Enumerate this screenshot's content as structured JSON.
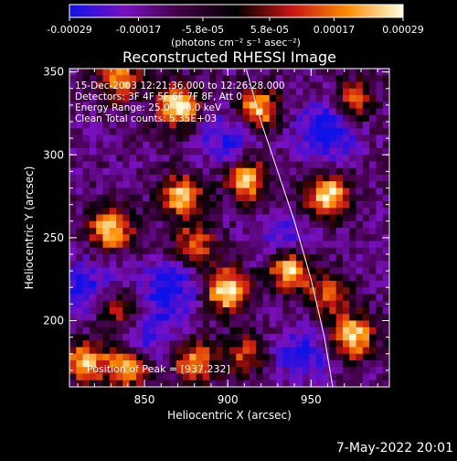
{
  "colorbar": {
    "tick_labels": [
      "-0.00029",
      "-0.00017",
      "-5.8e-05",
      "5.8e-05",
      "0.00017",
      "0.00029"
    ],
    "tick_values": [
      -0.00029,
      -0.00017,
      -5.8e-05,
      5.8e-05,
      0.00017,
      0.00029
    ],
    "range": [
      -0.00029,
      0.00029
    ],
    "units_label": "(photons cm⁻² s⁻¹ asec⁻²)",
    "colors": [
      "#1010e8",
      "#7a10c0",
      "#400040",
      "#000000",
      "#c81414",
      "#ff8c00",
      "#ffffe0"
    ]
  },
  "chart_data": {
    "type": "heatmap",
    "title": "Reconstructed RHESSI Image",
    "xlabel": "Heliocentric X (arcsec)",
    "ylabel": "Heliocentric Y (arcsec)",
    "xlim": [
      805,
      997
    ],
    "ylim": [
      160,
      352
    ],
    "x_ticks": [
      850,
      900,
      950
    ],
    "y_ticks": [
      200,
      250,
      300,
      350
    ],
    "x_tick_labels": [
      "850",
      "900",
      "950"
    ],
    "y_tick_labels": [
      "200",
      "250",
      "300",
      "350"
    ],
    "colormap": "blue-purple-black-red-orange-yellow-white",
    "bright_sources": [
      {
        "x": 830,
        "y": 255,
        "level": 0.8
      },
      {
        "x": 870,
        "y": 330,
        "level": 0.9
      },
      {
        "x": 872,
        "y": 275,
        "level": 0.75
      },
      {
        "x": 880,
        "y": 245,
        "level": 0.6
      },
      {
        "x": 900,
        "y": 218,
        "level": 0.95
      },
      {
        "x": 912,
        "y": 285,
        "level": 0.75
      },
      {
        "x": 918,
        "y": 328,
        "level": 0.8
      },
      {
        "x": 937,
        "y": 232,
        "level": 1.0
      },
      {
        "x": 960,
        "y": 275,
        "level": 0.9
      },
      {
        "x": 975,
        "y": 190,
        "level": 0.85
      },
      {
        "x": 960,
        "y": 215,
        "level": 0.55
      },
      {
        "x": 815,
        "y": 175,
        "level": 0.7
      },
      {
        "x": 840,
        "y": 172,
        "level": 0.8
      },
      {
        "x": 880,
        "y": 175,
        "level": 0.7
      },
      {
        "x": 910,
        "y": 180,
        "level": 0.45
      },
      {
        "x": 835,
        "y": 345,
        "level": 0.65
      },
      {
        "x": 975,
        "y": 332,
        "level": 0.55
      },
      {
        "x": 835,
        "y": 205,
        "level": 0.5
      }
    ],
    "dark_regions": [
      {
        "x": 960,
        "y": 315,
        "level": 0.9
      },
      {
        "x": 935,
        "y": 245,
        "level": 0.7
      },
      {
        "x": 945,
        "y": 180,
        "level": 0.6
      },
      {
        "x": 865,
        "y": 220,
        "level": 0.8
      },
      {
        "x": 850,
        "y": 190,
        "level": 0.6
      },
      {
        "x": 900,
        "y": 310,
        "level": 0.6
      },
      {
        "x": 815,
        "y": 220,
        "level": 0.6
      }
    ],
    "limb_curve": {
      "x": [
        911,
        920,
        930,
        940,
        950,
        958,
        963
      ],
      "y": [
        352,
        320,
        290,
        260,
        225,
        190,
        160
      ]
    },
    "annotations": [
      "15-Dec-2003 12:21:36.000 to 12:26:28.000",
      "Detectors: 3F 4F 5F 6F 7F 8F, Att 0",
      "Energy Range: 25.0 - 50.0 keV",
      "Clean     Total counts: 5.35E+03"
    ],
    "peak_label": "Position of Peak = [937,232]",
    "peak": {
      "x": 937,
      "y": 232
    }
  },
  "footer": {
    "date": "7-May-2022 20:01"
  }
}
